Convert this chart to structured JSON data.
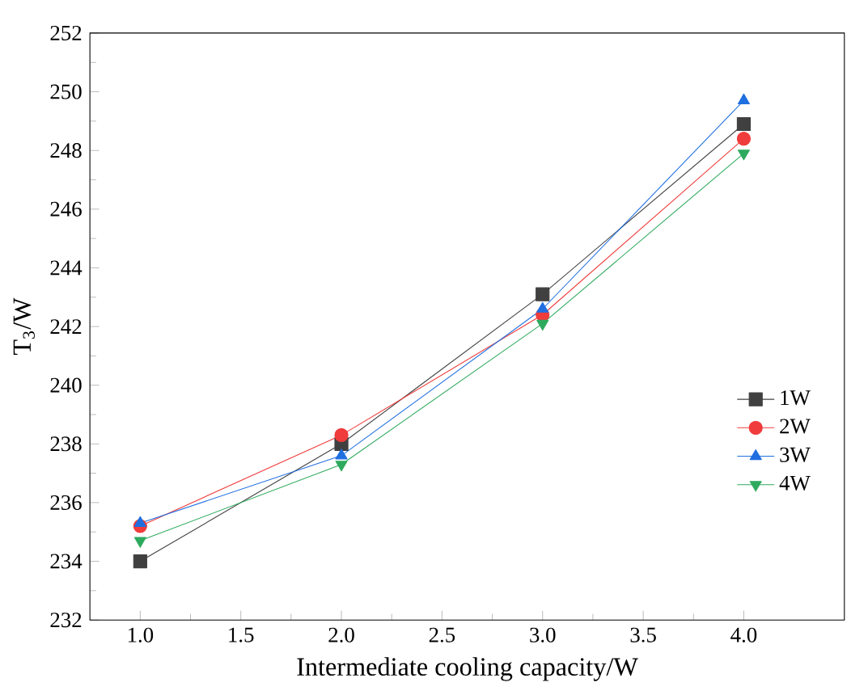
{
  "chart_data": {
    "type": "line",
    "xlabel": "Intermediate cooling capacity/W",
    "ylabel": "T$_{3}$/W",
    "x": [
      1.0,
      2.0,
      3.0,
      4.0
    ],
    "series": [
      {
        "name": "1W",
        "color": "#404040",
        "marker": "square",
        "values": [
          234.0,
          238.0,
          243.1,
          248.9
        ]
      },
      {
        "name": "2W",
        "color": "#f03c3c",
        "marker": "circle",
        "values": [
          235.2,
          238.3,
          242.4,
          248.4
        ]
      },
      {
        "name": "3W",
        "color": "#1f6fe0",
        "marker": "triangle",
        "values": [
          235.3,
          237.6,
          242.6,
          249.7
        ]
      },
      {
        "name": "4W",
        "color": "#2eaa5e",
        "marker": "triangle down",
        "values": [
          234.7,
          237.3,
          242.1,
          247.9
        ]
      }
    ],
    "xlim": [
      0.75,
      4.5
    ],
    "xticks": [
      {
        "value": 1.0,
        "label": "1.0"
      },
      {
        "value": 1.5,
        "label": "1.5"
      },
      {
        "value": 2.0,
        "label": "2.0"
      },
      {
        "value": 2.5,
        "label": "2.5"
      },
      {
        "value": 3.0,
        "label": "3.0"
      },
      {
        "value": 3.5,
        "label": "3.5"
      },
      {
        "value": 4.0,
        "label": "4.0"
      }
    ],
    "ylim": [
      232,
      252
    ],
    "yticks": [
      232,
      234,
      236,
      238,
      240,
      242,
      244,
      246,
      248,
      250,
      252
    ],
    "grid": false,
    "legend": "right",
    "line_style": "solid"
  }
}
